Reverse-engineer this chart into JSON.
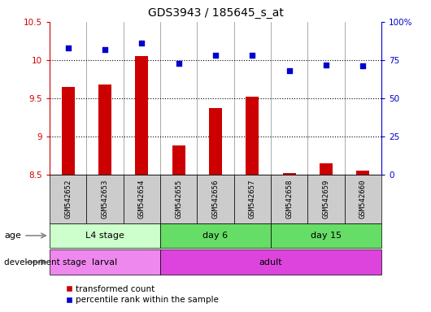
{
  "title": "GDS3943 / 185645_s_at",
  "samples": [
    "GSM542652",
    "GSM542653",
    "GSM542654",
    "GSM542655",
    "GSM542656",
    "GSM542657",
    "GSM542658",
    "GSM542659",
    "GSM542660"
  ],
  "transformed_count": [
    9.65,
    9.68,
    10.05,
    8.88,
    9.37,
    9.52,
    8.52,
    8.65,
    8.55
  ],
  "percentile_rank": [
    83,
    82,
    86,
    73,
    78,
    78,
    68,
    72,
    71
  ],
  "ylim_left": [
    8.5,
    10.5
  ],
  "ylim_right": [
    0,
    100
  ],
  "bar_color": "#cc0000",
  "dot_color": "#0000cc",
  "age_groups": [
    {
      "label": "L4 stage",
      "start": 0,
      "end": 3,
      "color": "#ccffcc"
    },
    {
      "label": "day 6",
      "start": 3,
      "end": 6,
      "color": "#66dd66"
    },
    {
      "label": "day 15",
      "start": 6,
      "end": 9,
      "color": "#66dd66"
    }
  ],
  "dev_groups": [
    {
      "label": "larval",
      "start": 0,
      "end": 3,
      "color": "#ee88ee"
    },
    {
      "label": "adult",
      "start": 3,
      "end": 9,
      "color": "#dd44dd"
    }
  ],
  "right_ytick_labels": [
    "100%",
    "75",
    "50",
    "25",
    "0"
  ],
  "right_ytick_vals": [
    100,
    75,
    50,
    25,
    0
  ]
}
